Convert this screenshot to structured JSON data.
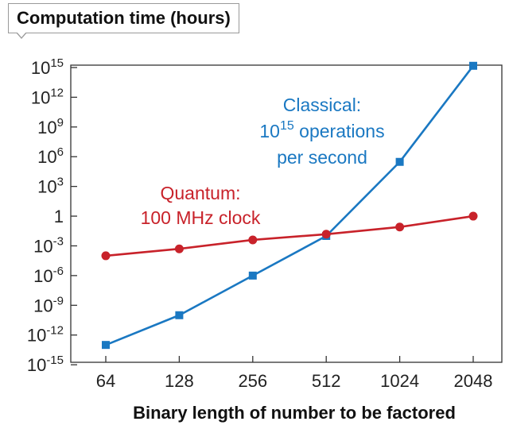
{
  "chart_data": {
    "type": "line",
    "title": "Computation time (hours)",
    "xlabel": "Binary length of number to be factored",
    "ylabel": "",
    "categories": [
      "64",
      "128",
      "256",
      "512",
      "1024",
      "2048"
    ],
    "y_scale": "log",
    "ylim": [
      1e-15,
      1e+16
    ],
    "y_ticks": [
      {
        "value": 1000000000000000.0,
        "base": "10",
        "exp": "15"
      },
      {
        "value": 1000000000000.0,
        "base": "10",
        "exp": "12"
      },
      {
        "value": 1000000000.0,
        "base": "10",
        "exp": "9"
      },
      {
        "value": 1000000.0,
        "base": "10",
        "exp": "6"
      },
      {
        "value": 1000.0,
        "base": "10",
        "exp": "3"
      },
      {
        "value": 1,
        "base": "1",
        "exp": ""
      },
      {
        "value": 0.001,
        "base": "10",
        "exp": "-3"
      },
      {
        "value": 1e-06,
        "base": "10",
        "exp": "-6"
      },
      {
        "value": 1e-09,
        "base": "10",
        "exp": "-9"
      },
      {
        "value": 1e-12,
        "base": "10",
        "exp": "-12"
      },
      {
        "value": 1e-15,
        "base": "10",
        "exp": "-15"
      }
    ],
    "grid": false,
    "series": [
      {
        "name": "Classical",
        "color": "#1a78c2",
        "marker": "square",
        "values": [
          1e-13,
          1e-10,
          1e-06,
          0.01,
          300000.0,
          1500000000000000.0
        ],
        "annotation_lines": [
          {
            "text": "Classical:",
            "sup": "",
            "after": ""
          },
          {
            "text": "10",
            "sup": "15",
            "after": " operations"
          },
          {
            "text": "per second",
            "sup": "",
            "after": ""
          }
        ]
      },
      {
        "name": "Quantum",
        "color": "#c8222a",
        "marker": "circle",
        "values": [
          0.0001,
          0.0005,
          0.004,
          0.015,
          0.08,
          1
        ],
        "annotation_lines": [
          {
            "text": "Quantum:",
            "sup": "",
            "after": ""
          },
          {
            "text": "100 MHz clock",
            "sup": "",
            "after": ""
          }
        ]
      }
    ]
  }
}
